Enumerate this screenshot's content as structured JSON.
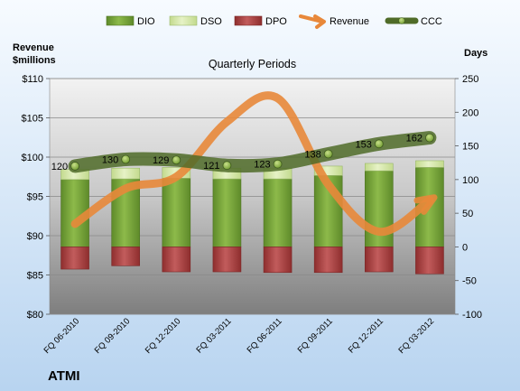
{
  "company": "ATMI",
  "chart_data": {
    "type": "bar",
    "title": "Quarterly Periods",
    "left_axis_title": [
      "Revenue",
      "$millions"
    ],
    "right_axis_title": "Days",
    "categories": [
      "FQ 06-2010",
      "FQ 09-2010",
      "FQ 12-2010",
      "FQ 03-2011",
      "FQ 06-2011",
      "FQ 09-2011",
      "FQ 12-2011",
      "FQ 03-2012"
    ],
    "left_axis": {
      "min": 80,
      "max": 110,
      "step": 5,
      "tick_labels": [
        "$80",
        "$85",
        "$90",
        "$95",
        "$100",
        "$105",
        "$110"
      ]
    },
    "right_axis": {
      "min": -100,
      "max": 250,
      "step": 50,
      "tick_labels": [
        "-100",
        "-50",
        "0",
        "50",
        "100",
        "150",
        "200",
        "250"
      ]
    },
    "legend": {
      "position": "top",
      "entries": [
        "DIO",
        "DSO",
        "DPO",
        "Revenue",
        "CCC"
      ]
    },
    "series": [
      {
        "name": "DIO",
        "axis": "right",
        "kind": "bar",
        "color": "#77A03B",
        "values": [
          100,
          101,
          102,
          101,
          101,
          106,
          113,
          118
        ]
      },
      {
        "name": "DSO",
        "axis": "right",
        "kind": "bar",
        "color": "#D4E6A8",
        "values": [
          15,
          16,
          16,
          16,
          16,
          14,
          11,
          10
        ]
      },
      {
        "name": "DPO",
        "axis": "right",
        "kind": "bar",
        "color": "#B24A4A",
        "values": [
          -33,
          -28,
          -37,
          -37,
          -38,
          -38,
          -37,
          -40
        ]
      },
      {
        "name": "Revenue",
        "axis": "left",
        "kind": "line",
        "color": "#E8883A",
        "values": [
          91.5,
          96,
          97.5,
          104.5,
          107.5,
          96.5,
          90.5,
          94.5
        ]
      },
      {
        "name": "CCC",
        "axis": "right",
        "kind": "line",
        "color": "#5C7A2E",
        "values": [
          120,
          130,
          129,
          121,
          123,
          138,
          153,
          162
        ]
      }
    ],
    "ccc_labels": [
      "120",
      "130",
      "129",
      "121",
      "123",
      "138",
      "153",
      "162"
    ]
  }
}
